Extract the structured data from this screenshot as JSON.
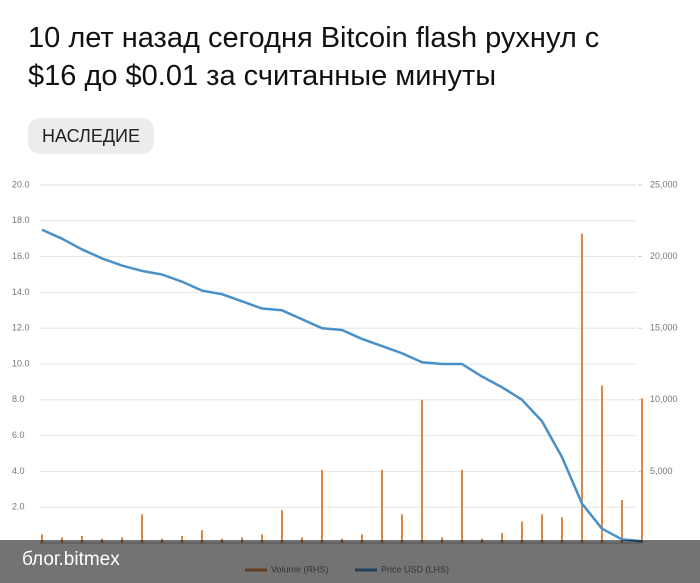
{
  "header": {
    "title_lines": [
      "10 лет назад сегодня Bitcoin flash рухнул с",
      "$16 до $0.01 за считанные минуты"
    ],
    "tag": "НАСЛЕДИЕ"
  },
  "chart_data": {
    "type": "line",
    "categories": [
      null,
      null,
      null,
      null,
      null,
      null,
      null,
      null,
      null,
      null,
      null,
      null,
      null,
      null,
      null,
      null,
      null,
      null,
      null,
      null,
      null,
      null,
      null,
      null,
      null,
      null,
      null,
      null,
      null,
      null,
      null
    ],
    "series": [
      {
        "name": "Volume (RHS)",
        "type": "bar",
        "axis": "y2",
        "color": "#d98a4a",
        "values": [
          600,
          400,
          500,
          300,
          400,
          2000,
          300,
          500,
          900,
          300,
          400,
          600,
          2300,
          400,
          5100,
          300,
          600,
          5100,
          2000,
          10000,
          400,
          5100,
          300,
          700,
          1500,
          2000,
          1800,
          21600,
          11000,
          3000,
          10100
        ]
      },
      {
        "name": "Price USD (LHS)",
        "type": "line",
        "color": "#4a90c8",
        "values": [
          17.5,
          17.0,
          16.4,
          15.9,
          15.5,
          15.2,
          15.0,
          14.6,
          14.1,
          13.9,
          13.5,
          13.1,
          13.0,
          12.5,
          12.0,
          11.9,
          11.4,
          11.0,
          10.6,
          10.1,
          10.0,
          10.0,
          9.3,
          8.7,
          8.0,
          6.8,
          4.8,
          2.2,
          0.8,
          0.2,
          0.1
        ]
      }
    ],
    "ylim": [
      0,
      20
    ],
    "yticks": [
      {
        "value": 2,
        "label": "2.0"
      },
      {
        "value": 4,
        "label": "4.0"
      },
      {
        "value": 6,
        "label": "6.0"
      },
      {
        "value": 8,
        "label": "8.0"
      },
      {
        "value": 10,
        "label": "10.0"
      },
      {
        "value": 12,
        "label": "12.0"
      },
      {
        "value": 14,
        "label": "14.0"
      },
      {
        "value": 16,
        "label": "16.0"
      },
      {
        "value": 18,
        "label": "18.0"
      },
      {
        "value": 20,
        "label": "20.0"
      }
    ],
    "y2lim": [
      0,
      25000
    ],
    "y2ticks": [
      {
        "value": 5000,
        "label": "5,000"
      },
      {
        "value": 10000,
        "label": "10,000"
      },
      {
        "value": 15000,
        "label": "15,000"
      },
      {
        "value": 20000,
        "label": "20,000"
      },
      {
        "value": 25000,
        "label": "25,000"
      }
    ],
    "grid": true
  },
  "caption": "блог.bitmex"
}
